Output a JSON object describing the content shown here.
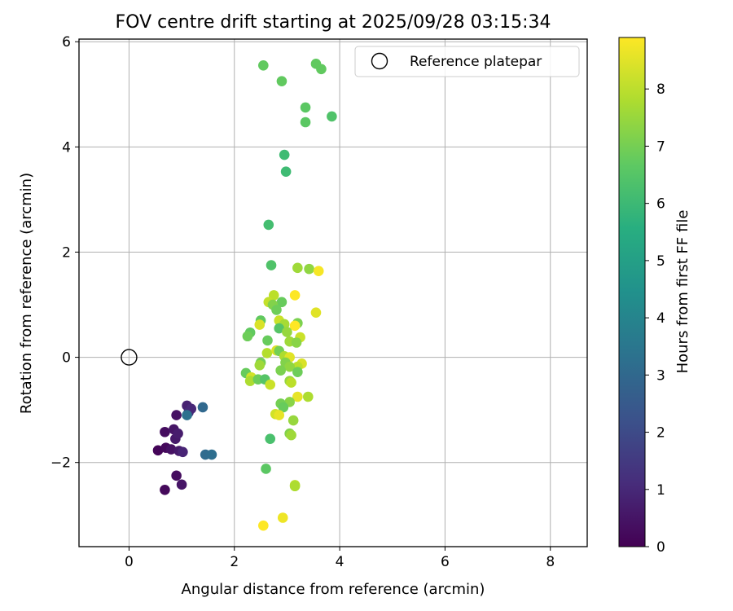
{
  "chart_data": {
    "type": "scatter",
    "title": "FOV centre drift starting at 2025/09/28 03:15:34",
    "xlabel": "Angular distance from reference (arcmin)",
    "ylabel": "Rotation from reference (arcmin)",
    "xlim": [
      -0.95,
      8.7
    ],
    "ylim": [
      -3.6,
      6.05
    ],
    "xticks": [
      0,
      2,
      4,
      6,
      8
    ],
    "yticks": [
      -2,
      0,
      2,
      4,
      6
    ],
    "grid": true,
    "legend": {
      "location": "top-right",
      "entries": [
        {
          "label": "Reference platepar",
          "marker": "hollow-circle",
          "color": "#000000",
          "x": 0,
          "y": 0
        }
      ]
    },
    "colorbar": {
      "label": "Hours from first FF file",
      "min": 0,
      "max": 8.9,
      "colormap": "viridis",
      "ticks": [
        0,
        1,
        2,
        3,
        4,
        5,
        6,
        7,
        8
      ]
    },
    "points": [
      {
        "x": 0.55,
        "y": -1.77,
        "c": 0.1
      },
      {
        "x": 0.68,
        "y": -1.42,
        "c": 0.3
      },
      {
        "x": 0.7,
        "y": -1.72,
        "c": 0.2
      },
      {
        "x": 0.68,
        "y": -2.52,
        "c": 0.2
      },
      {
        "x": 0.8,
        "y": -1.75,
        "c": 0.4
      },
      {
        "x": 0.85,
        "y": -1.37,
        "c": 0.5
      },
      {
        "x": 0.88,
        "y": -1.55,
        "c": 0.6
      },
      {
        "x": 0.9,
        "y": -1.1,
        "c": 0.4
      },
      {
        "x": 0.93,
        "y": -1.45,
        "c": 0.7
      },
      {
        "x": 0.95,
        "y": -1.78,
        "c": 0.6
      },
      {
        "x": 0.9,
        "y": -2.25,
        "c": 0.3
      },
      {
        "x": 1.0,
        "y": -2.42,
        "c": 0.5
      },
      {
        "x": 1.02,
        "y": -1.8,
        "c": 0.9
      },
      {
        "x": 1.1,
        "y": -0.92,
        "c": 0.8
      },
      {
        "x": 1.13,
        "y": -1.05,
        "c": 1.2
      },
      {
        "x": 1.18,
        "y": -0.98,
        "c": 1.0
      },
      {
        "x": 1.1,
        "y": -1.1,
        "c": 3.3
      },
      {
        "x": 1.4,
        "y": -0.95,
        "c": 3.0
      },
      {
        "x": 1.45,
        "y": -1.85,
        "c": 3.1
      },
      {
        "x": 1.57,
        "y": -1.85,
        "c": 3.2
      },
      {
        "x": 2.55,
        "y": 5.55,
        "c": 6.7
      },
      {
        "x": 2.9,
        "y": 5.25,
        "c": 6.7
      },
      {
        "x": 3.55,
        "y": 5.58,
        "c": 6.7
      },
      {
        "x": 3.65,
        "y": 5.48,
        "c": 6.7
      },
      {
        "x": 3.35,
        "y": 4.75,
        "c": 6.6
      },
      {
        "x": 3.35,
        "y": 4.47,
        "c": 6.6
      },
      {
        "x": 3.85,
        "y": 4.58,
        "c": 6.4
      },
      {
        "x": 2.95,
        "y": 3.85,
        "c": 6.1
      },
      {
        "x": 2.98,
        "y": 3.53,
        "c": 6.1
      },
      {
        "x": 2.65,
        "y": 2.52,
        "c": 6.2
      },
      {
        "x": 2.7,
        "y": 1.75,
        "c": 6.4
      },
      {
        "x": 3.2,
        "y": 1.7,
        "c": 7.6
      },
      {
        "x": 3.42,
        "y": 1.68,
        "c": 7.4
      },
      {
        "x": 3.6,
        "y": 1.64,
        "c": 8.8
      },
      {
        "x": 2.75,
        "y": 1.18,
        "c": 8.0
      },
      {
        "x": 3.15,
        "y": 1.18,
        "c": 8.9
      },
      {
        "x": 2.65,
        "y": 1.05,
        "c": 8.1
      },
      {
        "x": 2.9,
        "y": 1.05,
        "c": 6.8
      },
      {
        "x": 2.73,
        "y": 1.0,
        "c": 7.2
      },
      {
        "x": 2.8,
        "y": 0.9,
        "c": 6.9
      },
      {
        "x": 3.55,
        "y": 0.85,
        "c": 8.5
      },
      {
        "x": 2.5,
        "y": 0.7,
        "c": 6.7
      },
      {
        "x": 2.85,
        "y": 0.7,
        "c": 8.2
      },
      {
        "x": 2.48,
        "y": 0.62,
        "c": 8.4
      },
      {
        "x": 2.95,
        "y": 0.63,
        "c": 7.7
      },
      {
        "x": 3.2,
        "y": 0.65,
        "c": 7.1
      },
      {
        "x": 3.15,
        "y": 0.6,
        "c": 8.9
      },
      {
        "x": 2.85,
        "y": 0.55,
        "c": 6.5
      },
      {
        "x": 2.3,
        "y": 0.47,
        "c": 6.7
      },
      {
        "x": 2.25,
        "y": 0.4,
        "c": 6.9
      },
      {
        "x": 3.0,
        "y": 0.48,
        "c": 7.5
      },
      {
        "x": 3.25,
        "y": 0.38,
        "c": 8.2
      },
      {
        "x": 2.63,
        "y": 0.32,
        "c": 6.8
      },
      {
        "x": 3.05,
        "y": 0.3,
        "c": 7.6
      },
      {
        "x": 3.18,
        "y": 0.28,
        "c": 7.3
      },
      {
        "x": 2.62,
        "y": 0.08,
        "c": 7.9
      },
      {
        "x": 2.8,
        "y": 0.13,
        "c": 8.4
      },
      {
        "x": 2.85,
        "y": 0.12,
        "c": 7.0
      },
      {
        "x": 2.95,
        "y": 0.02,
        "c": 7.8
      },
      {
        "x": 3.05,
        "y": 0.0,
        "c": 8.5
      },
      {
        "x": 2.97,
        "y": -0.1,
        "c": 7.2
      },
      {
        "x": 2.5,
        "y": -0.1,
        "c": 7.0
      },
      {
        "x": 2.48,
        "y": -0.15,
        "c": 7.6
      },
      {
        "x": 3.28,
        "y": -0.12,
        "c": 8.4
      },
      {
        "x": 3.2,
        "y": -0.18,
        "c": 8.0
      },
      {
        "x": 3.05,
        "y": -0.18,
        "c": 7.4
      },
      {
        "x": 2.88,
        "y": -0.25,
        "c": 7.1
      },
      {
        "x": 3.2,
        "y": -0.28,
        "c": 6.9
      },
      {
        "x": 2.22,
        "y": -0.3,
        "c": 6.8
      },
      {
        "x": 2.32,
        "y": -0.38,
        "c": 8.3
      },
      {
        "x": 2.3,
        "y": -0.45,
        "c": 7.8
      },
      {
        "x": 2.45,
        "y": -0.42,
        "c": 6.9
      },
      {
        "x": 2.58,
        "y": -0.42,
        "c": 6.5
      },
      {
        "x": 3.05,
        "y": -0.45,
        "c": 7.5
      },
      {
        "x": 3.08,
        "y": -0.48,
        "c": 8.0
      },
      {
        "x": 2.68,
        "y": -0.52,
        "c": 8.2
      },
      {
        "x": 3.2,
        "y": -0.75,
        "c": 8.6
      },
      {
        "x": 3.4,
        "y": -0.75,
        "c": 7.8
      },
      {
        "x": 3.05,
        "y": -0.85,
        "c": 7.3
      },
      {
        "x": 2.88,
        "y": -0.88,
        "c": 7.0
      },
      {
        "x": 2.93,
        "y": -0.95,
        "c": 6.8
      },
      {
        "x": 2.78,
        "y": -1.08,
        "c": 8.3
      },
      {
        "x": 2.85,
        "y": -1.1,
        "c": 8.6
      },
      {
        "x": 3.12,
        "y": -1.2,
        "c": 7.5
      },
      {
        "x": 3.05,
        "y": -1.45,
        "c": 7.2
      },
      {
        "x": 3.08,
        "y": -1.48,
        "c": 7.6
      },
      {
        "x": 2.68,
        "y": -1.55,
        "c": 6.3
      },
      {
        "x": 2.6,
        "y": -2.12,
        "c": 6.6
      },
      {
        "x": 3.15,
        "y": -2.43,
        "c": 8.0
      },
      {
        "x": 3.15,
        "y": -2.45,
        "c": 7.8
      },
      {
        "x": 2.55,
        "y": -3.2,
        "c": 8.9
      },
      {
        "x": 2.92,
        "y": -3.05,
        "c": 8.7
      }
    ]
  }
}
